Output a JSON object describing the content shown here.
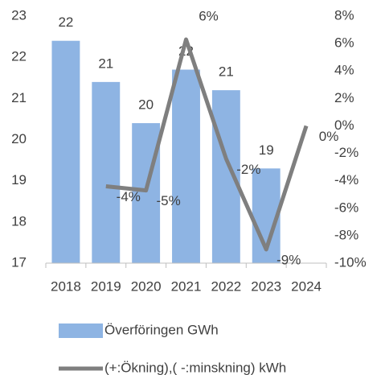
{
  "chart_data": {
    "type": "bar-line",
    "categories": [
      "2018",
      "2019",
      "2020",
      "2021",
      "2022",
      "2023",
      "2024"
    ],
    "series": [
      {
        "name": "Överföringen GWh",
        "type": "bar",
        "color": "#8eb4e3",
        "axis": "y",
        "values": [
          22.4,
          21.4,
          20.4,
          21.7,
          21.2,
          19.3,
          null
        ],
        "value_labels": [
          "22",
          "21",
          "20",
          "22",
          "21",
          "19",
          null
        ]
      },
      {
        "name": "(+:Ökning),( -:minskning) kWh",
        "type": "line",
        "color": "#7f7f7f",
        "axis": "y2",
        "values": [
          null,
          -4.4,
          -4.7,
          6.3,
          -2.4,
          -9.0,
          0
        ],
        "value_labels": [
          null,
          "-4%",
          "-5%",
          "6%",
          "-2%",
          "-9%",
          "0%"
        ]
      }
    ],
    "ylim": [
      17,
      23
    ],
    "yticks": [
      17,
      18,
      19,
      20,
      21,
      22,
      23
    ],
    "y2lim": [
      -10,
      8
    ],
    "y2ticks": [
      {
        "value": -10,
        "label": "-10%"
      },
      {
        "value": -8,
        "label": "-8%"
      },
      {
        "value": -6,
        "label": "-6%"
      },
      {
        "value": -4,
        "label": "-4%"
      },
      {
        "value": -2,
        "label": "-2%"
      },
      {
        "value": 0,
        "label": "0%"
      },
      {
        "value": 2,
        "label": "2%"
      },
      {
        "value": 4,
        "label": "4%"
      },
      {
        "value": 6,
        "label": "6%"
      },
      {
        "value": 8,
        "label": "8%"
      }
    ],
    "grid": false,
    "legend": "bottom"
  }
}
